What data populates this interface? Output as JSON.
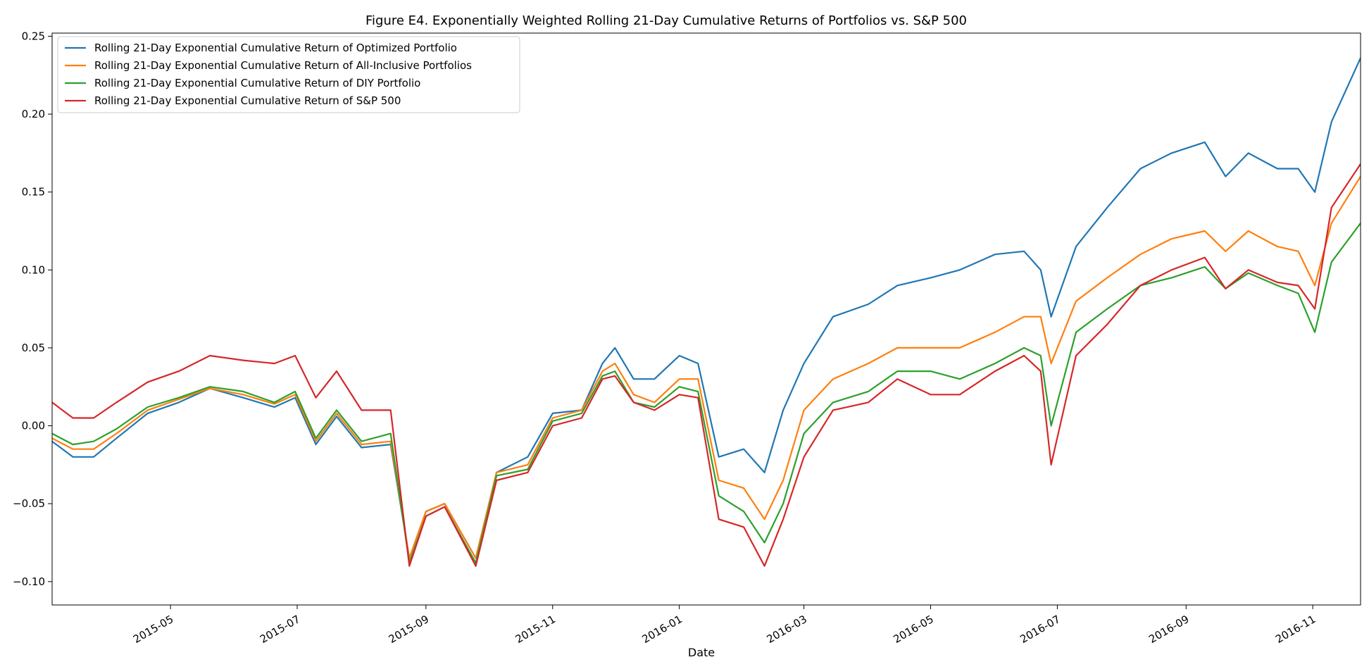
{
  "chart_data": {
    "type": "line",
    "title": "Figure E4. Exponentially Weighted Rolling 21-Day Cumulative Returns of Portfolios vs. S&P 500",
    "xlabel": "Date",
    "ylabel": "",
    "xlim": [
      "2015-03-05",
      "2016-11-24"
    ],
    "ylim": [
      -0.115,
      0.252
    ],
    "grid": false,
    "legend_position": "top-left",
    "x_ticks": [
      "2015-05",
      "2015-07",
      "2015-09",
      "2015-11",
      "2016-01",
      "2016-03",
      "2016-05",
      "2016-07",
      "2016-09",
      "2016-11"
    ],
    "y_ticks": [
      -0.1,
      -0.05,
      0.0,
      0.05,
      0.1,
      0.15,
      0.2,
      0.25
    ],
    "y_tick_labels": [
      "−0.10",
      "−0.05",
      "0.00",
      "0.05",
      "0.10",
      "0.15",
      "0.20",
      "0.25"
    ],
    "x": [
      "2015-03-05",
      "2015-03-15",
      "2015-03-25",
      "2015-04-05",
      "2015-04-20",
      "2015-05-05",
      "2015-05-20",
      "2015-06-05",
      "2015-06-20",
      "2015-06-30",
      "2015-07-10",
      "2015-07-20",
      "2015-08-01",
      "2015-08-15",
      "2015-08-24",
      "2015-09-01",
      "2015-09-10",
      "2015-09-25",
      "2015-10-05",
      "2015-10-20",
      "2015-11-01",
      "2015-11-15",
      "2015-11-25",
      "2015-12-01",
      "2015-12-10",
      "2015-12-20",
      "2016-01-01",
      "2016-01-10",
      "2016-01-20",
      "2016-02-01",
      "2016-02-11",
      "2016-02-20",
      "2016-03-01",
      "2016-03-15",
      "2016-04-01",
      "2016-04-15",
      "2016-05-01",
      "2016-05-15",
      "2016-06-01",
      "2016-06-15",
      "2016-06-23",
      "2016-06-28",
      "2016-07-10",
      "2016-07-25",
      "2016-08-10",
      "2016-08-25",
      "2016-09-10",
      "2016-09-20",
      "2016-10-01",
      "2016-10-15",
      "2016-10-25",
      "2016-11-02",
      "2016-11-10",
      "2016-11-24"
    ],
    "series": [
      {
        "name": "Rolling 21-Day Exponential Cumulative Return of Optimized Portfolio",
        "color": "#1f77b4",
        "values": [
          -0.01,
          -0.02,
          -0.02,
          -0.008,
          0.008,
          0.015,
          0.024,
          0.018,
          0.012,
          0.018,
          -0.012,
          0.006,
          -0.014,
          -0.012,
          -0.085,
          -0.055,
          -0.05,
          -0.085,
          -0.03,
          -0.02,
          0.008,
          0.01,
          0.04,
          0.05,
          0.03,
          0.03,
          0.045,
          0.04,
          -0.02,
          -0.015,
          -0.03,
          0.01,
          0.04,
          0.07,
          0.078,
          0.09,
          0.095,
          0.1,
          0.11,
          0.112,
          0.1,
          0.07,
          0.115,
          0.14,
          0.165,
          0.175,
          0.182,
          0.16,
          0.175,
          0.165,
          0.165,
          0.15,
          0.195,
          0.236
        ]
      },
      {
        "name": "Rolling 21-Day Exponential Cumulative Return of All-Inclusive Portfolios",
        "color": "#ff7f0e",
        "values": [
          -0.008,
          -0.015,
          -0.015,
          -0.005,
          0.01,
          0.017,
          0.024,
          0.02,
          0.014,
          0.02,
          -0.01,
          0.008,
          -0.012,
          -0.01,
          -0.085,
          -0.055,
          -0.05,
          -0.085,
          -0.03,
          -0.025,
          0.005,
          0.01,
          0.035,
          0.04,
          0.02,
          0.015,
          0.03,
          0.03,
          -0.035,
          -0.04,
          -0.06,
          -0.035,
          0.01,
          0.03,
          0.04,
          0.05,
          0.05,
          0.05,
          0.06,
          0.07,
          0.07,
          0.04,
          0.08,
          0.095,
          0.11,
          0.12,
          0.125,
          0.112,
          0.125,
          0.115,
          0.112,
          0.09,
          0.13,
          0.16
        ]
      },
      {
        "name": "Rolling 21-Day Exponential Cumulative Return of DIY Portfolio",
        "color": "#2ca02c",
        "values": [
          -0.005,
          -0.012,
          -0.01,
          -0.002,
          0.012,
          0.018,
          0.025,
          0.022,
          0.015,
          0.022,
          -0.008,
          0.01,
          -0.01,
          -0.005,
          -0.088,
          -0.058,
          -0.052,
          -0.088,
          -0.032,
          -0.028,
          0.003,
          0.008,
          0.032,
          0.035,
          0.015,
          0.012,
          0.025,
          0.022,
          -0.045,
          -0.055,
          -0.075,
          -0.05,
          -0.005,
          0.015,
          0.022,
          0.035,
          0.035,
          0.03,
          0.04,
          0.05,
          0.045,
          0.0,
          0.06,
          0.075,
          0.09,
          0.095,
          0.102,
          0.088,
          0.098,
          0.09,
          0.085,
          0.06,
          0.105,
          0.13
        ]
      },
      {
        "name": "Rolling 21-Day Exponential Cumulative Return of S&P 500",
        "color": "#d62728",
        "values": [
          0.015,
          0.005,
          0.005,
          0.015,
          0.028,
          0.035,
          0.045,
          0.042,
          0.04,
          0.045,
          0.018,
          0.035,
          0.01,
          0.01,
          -0.09,
          -0.058,
          -0.052,
          -0.09,
          -0.035,
          -0.03,
          0.0,
          0.005,
          0.03,
          0.032,
          0.015,
          0.01,
          0.02,
          0.018,
          -0.06,
          -0.065,
          -0.09,
          -0.06,
          -0.02,
          0.01,
          0.015,
          0.03,
          0.02,
          0.02,
          0.035,
          0.045,
          0.035,
          -0.025,
          0.045,
          0.065,
          0.09,
          0.1,
          0.108,
          0.088,
          0.1,
          0.092,
          0.09,
          0.075,
          0.14,
          0.168
        ]
      }
    ]
  }
}
